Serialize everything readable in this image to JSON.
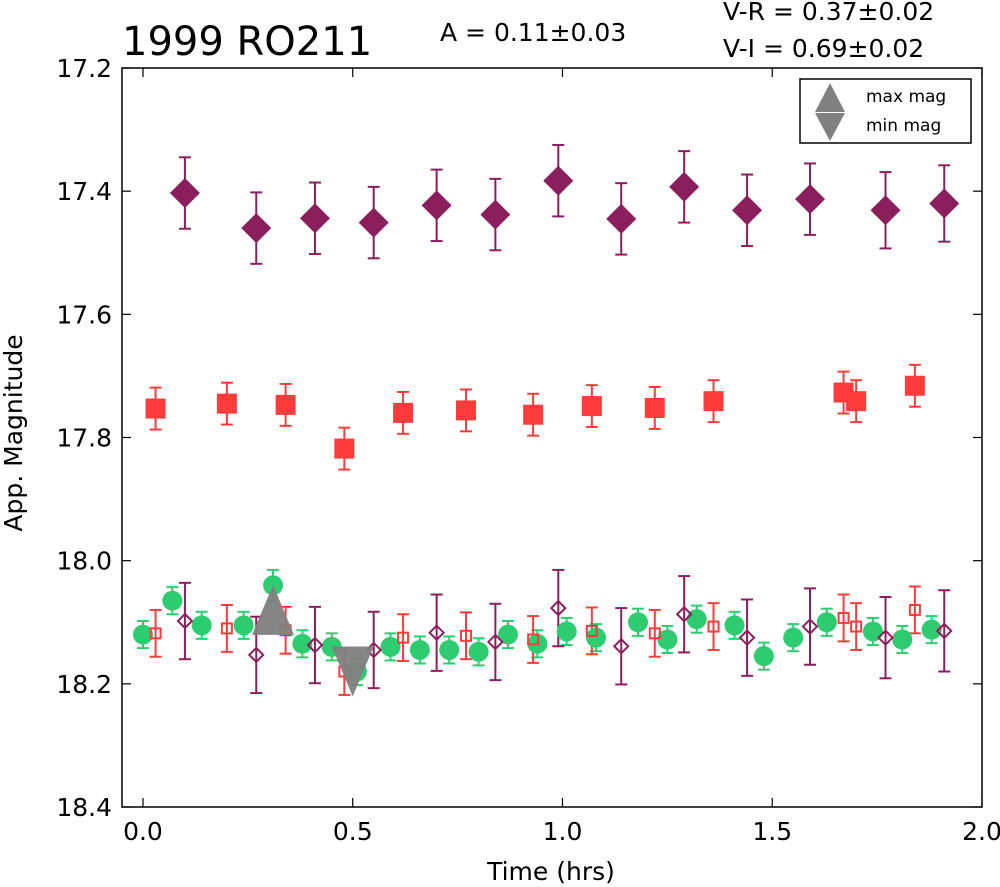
{
  "chart_data": {
    "type": "scatter",
    "title": "1999 RO211",
    "annotations": {
      "amplitude": "A  = 0.11±0.03",
      "v_minus_r": "V-R = 0.37±0.02",
      "v_minus_i": "V-I  = 0.69±0.02"
    },
    "xlabel": "Time (hrs)",
    "ylabel": "App. Magnitude",
    "xlim": [
      -0.05,
      2.0
    ],
    "ylim": [
      18.4,
      17.2
    ],
    "y_inverted": true,
    "grid": false,
    "legend_placement": "top-right",
    "x_ticks": [
      {
        "value": 0.0,
        "label": "0.0"
      },
      {
        "value": 0.5,
        "label": "0.5"
      },
      {
        "value": 1.0,
        "label": "1.0"
      },
      {
        "value": 1.5,
        "label": "1.5"
      },
      {
        "value": 2.0,
        "label": "2.0"
      }
    ],
    "y_ticks": [
      {
        "value": 17.2,
        "label": "17.2"
      },
      {
        "value": 17.4,
        "label": "17.4"
      },
      {
        "value": 17.6,
        "label": "17.6"
      },
      {
        "value": 17.8,
        "label": "17.8"
      },
      {
        "value": 18.0,
        "label": "18.0"
      },
      {
        "value": 18.2,
        "label": "18.2"
      },
      {
        "value": 18.4,
        "label": "18.4"
      }
    ],
    "legend": [
      {
        "label": "max mag",
        "marker": "triangle-up",
        "color": "#808080"
      },
      {
        "label": "min mag",
        "marker": "triangle-down",
        "color": "#808080"
      }
    ],
    "series": [
      {
        "marker": "diamond-filled",
        "color": "#8b1f5d",
        "points": [
          {
            "x": 0.1,
            "y": 17.403,
            "err": 0.058
          },
          {
            "x": 0.27,
            "y": 17.46,
            "err": 0.058
          },
          {
            "x": 0.41,
            "y": 17.444,
            "err": 0.058
          },
          {
            "x": 0.55,
            "y": 17.451,
            "err": 0.058
          },
          {
            "x": 0.7,
            "y": 17.423,
            "err": 0.058
          },
          {
            "x": 0.84,
            "y": 17.438,
            "err": 0.058
          },
          {
            "x": 0.99,
            "y": 17.383,
            "err": 0.058
          },
          {
            "x": 1.14,
            "y": 17.445,
            "err": 0.058
          },
          {
            "x": 1.29,
            "y": 17.393,
            "err": 0.058
          },
          {
            "x": 1.44,
            "y": 17.431,
            "err": 0.058
          },
          {
            "x": 1.59,
            "y": 17.413,
            "err": 0.058
          },
          {
            "x": 1.77,
            "y": 17.431,
            "err": 0.062
          },
          {
            "x": 1.91,
            "y": 17.42,
            "err": 0.062
          }
        ]
      },
      {
        "marker": "square-filled",
        "color": "#ff3b3b",
        "points": [
          {
            "x": 0.03,
            "y": 17.753,
            "err": 0.034
          },
          {
            "x": 0.2,
            "y": 17.745,
            "err": 0.034
          },
          {
            "x": 0.34,
            "y": 17.747,
            "err": 0.034
          },
          {
            "x": 0.48,
            "y": 17.818,
            "err": 0.034
          },
          {
            "x": 0.62,
            "y": 17.76,
            "err": 0.034
          },
          {
            "x": 0.77,
            "y": 17.756,
            "err": 0.034
          },
          {
            "x": 0.93,
            "y": 17.763,
            "err": 0.034
          },
          {
            "x": 1.07,
            "y": 17.749,
            "err": 0.034
          },
          {
            "x": 1.22,
            "y": 17.752,
            "err": 0.034
          },
          {
            "x": 1.36,
            "y": 17.741,
            "err": 0.034
          },
          {
            "x": 1.67,
            "y": 17.727,
            "err": 0.034
          },
          {
            "x": 1.7,
            "y": 17.741,
            "err": 0.034
          },
          {
            "x": 1.84,
            "y": 17.716,
            "err": 0.034
          }
        ]
      },
      {
        "marker": "circle-filled",
        "color": "#2ecc71",
        "points": [
          {
            "x": 0.0,
            "y": 18.12,
            "err": 0.022
          },
          {
            "x": 0.07,
            "y": 18.065,
            "err": 0.022
          },
          {
            "x": 0.14,
            "y": 18.105,
            "err": 0.022
          },
          {
            "x": 0.24,
            "y": 18.105,
            "err": 0.022
          },
          {
            "x": 0.31,
            "y": 18.04,
            "err": 0.025
          },
          {
            "x": 0.38,
            "y": 18.135,
            "err": 0.022
          },
          {
            "x": 0.45,
            "y": 18.14,
            "err": 0.022
          },
          {
            "x": 0.51,
            "y": 18.18,
            "err": 0.022
          },
          {
            "x": 0.59,
            "y": 18.14,
            "err": 0.022
          },
          {
            "x": 0.66,
            "y": 18.145,
            "err": 0.022
          },
          {
            "x": 0.73,
            "y": 18.145,
            "err": 0.022
          },
          {
            "x": 0.8,
            "y": 18.148,
            "err": 0.022
          },
          {
            "x": 0.87,
            "y": 18.12,
            "err": 0.022
          },
          {
            "x": 0.94,
            "y": 18.135,
            "err": 0.022
          },
          {
            "x": 1.01,
            "y": 18.115,
            "err": 0.022
          },
          {
            "x": 1.08,
            "y": 18.125,
            "err": 0.022
          },
          {
            "x": 1.18,
            "y": 18.1,
            "err": 0.022
          },
          {
            "x": 1.25,
            "y": 18.128,
            "err": 0.022
          },
          {
            "x": 1.32,
            "y": 18.095,
            "err": 0.022
          },
          {
            "x": 1.41,
            "y": 18.105,
            "err": 0.022
          },
          {
            "x": 1.48,
            "y": 18.155,
            "err": 0.022
          },
          {
            "x": 1.55,
            "y": 18.125,
            "err": 0.022
          },
          {
            "x": 1.63,
            "y": 18.1,
            "err": 0.022
          },
          {
            "x": 1.74,
            "y": 18.115,
            "err": 0.022
          },
          {
            "x": 1.81,
            "y": 18.128,
            "err": 0.022
          },
          {
            "x": 1.88,
            "y": 18.112,
            "err": 0.022
          }
        ]
      },
      {
        "marker": "square-open",
        "color": "#ff3b3b",
        "points": [
          {
            "x": 0.03,
            "y": 18.118,
            "err": 0.038
          },
          {
            "x": 0.2,
            "y": 18.11,
            "err": 0.038
          },
          {
            "x": 0.34,
            "y": 18.113,
            "err": 0.038
          },
          {
            "x": 0.48,
            "y": 18.18,
            "err": 0.038
          },
          {
            "x": 0.62,
            "y": 18.125,
            "err": 0.038
          },
          {
            "x": 0.77,
            "y": 18.122,
            "err": 0.038
          },
          {
            "x": 0.93,
            "y": 18.128,
            "err": 0.038
          },
          {
            "x": 1.07,
            "y": 18.114,
            "err": 0.038
          },
          {
            "x": 1.22,
            "y": 18.118,
            "err": 0.038
          },
          {
            "x": 1.36,
            "y": 18.107,
            "err": 0.038
          },
          {
            "x": 1.67,
            "y": 18.093,
            "err": 0.038
          },
          {
            "x": 1.7,
            "y": 18.107,
            "err": 0.038
          },
          {
            "x": 1.84,
            "y": 18.08,
            "err": 0.038
          }
        ]
      },
      {
        "marker": "diamond-open",
        "color": "#8b1f5d",
        "points": [
          {
            "x": 0.1,
            "y": 18.098,
            "err": 0.062
          },
          {
            "x": 0.27,
            "y": 18.153,
            "err": 0.062
          },
          {
            "x": 0.41,
            "y": 18.137,
            "err": 0.062
          },
          {
            "x": 0.55,
            "y": 18.145,
            "err": 0.062
          },
          {
            "x": 0.7,
            "y": 18.117,
            "err": 0.062
          },
          {
            "x": 0.84,
            "y": 18.132,
            "err": 0.062
          },
          {
            "x": 0.99,
            "y": 18.077,
            "err": 0.062
          },
          {
            "x": 1.14,
            "y": 18.139,
            "err": 0.062
          },
          {
            "x": 1.29,
            "y": 18.087,
            "err": 0.062
          },
          {
            "x": 1.44,
            "y": 18.125,
            "err": 0.062
          },
          {
            "x": 1.59,
            "y": 18.107,
            "err": 0.062
          },
          {
            "x": 1.77,
            "y": 18.125,
            "err": 0.066
          },
          {
            "x": 1.91,
            "y": 18.114,
            "err": 0.066
          }
        ]
      }
    ],
    "extrema_markers": [
      {
        "type": "max",
        "marker": "triangle-up",
        "color": "#808080",
        "x": 0.31,
        "y": 18.08
      },
      {
        "type": "min",
        "marker": "triangle-down",
        "color": "#808080",
        "x": 0.5,
        "y": 18.18
      }
    ]
  }
}
